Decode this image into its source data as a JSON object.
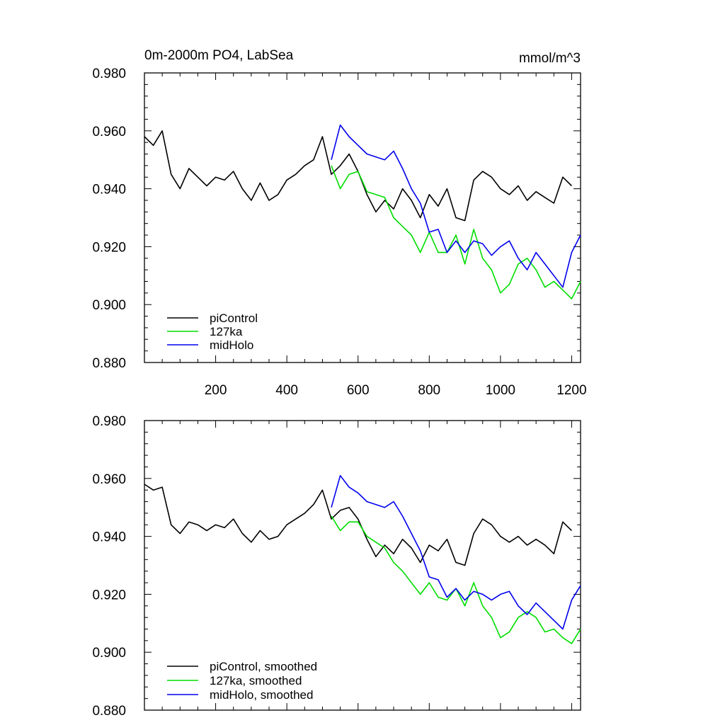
{
  "figure": {
    "title_left": "0m-2000m PO4, LabSea",
    "title_right": "mmol/m^3"
  },
  "chart_data": [
    {
      "type": "line",
      "panel": "top",
      "title": "0m-2000m PO4, LabSea",
      "units": "mmol/m^3",
      "xlim": [
        0,
        1225
      ],
      "ylim": [
        0.88,
        0.98
      ],
      "x_ticks": [
        200,
        400,
        600,
        800,
        1000,
        1200
      ],
      "x_tick_labels": [
        "200",
        "400",
        "600",
        "800",
        "1000",
        "1200"
      ],
      "y_ticks": [
        0.88,
        0.9,
        0.92,
        0.94,
        0.96,
        0.98
      ],
      "y_tick_labels": [
        "0.880",
        "0.900",
        "0.920",
        "0.940",
        "0.960",
        "0.980"
      ],
      "legend_position": "bottom-left",
      "series": [
        {
          "name": "piControl",
          "color": "#000000",
          "x": [
            0,
            25,
            50,
            75,
            100,
            125,
            150,
            175,
            200,
            225,
            250,
            275,
            300,
            325,
            350,
            375,
            400,
            425,
            450,
            475,
            500,
            525,
            550,
            575,
            600,
            625,
            650,
            675,
            700,
            725,
            750,
            775,
            800,
            825,
            850,
            875,
            900,
            925,
            950,
            975,
            1000,
            1025,
            1050,
            1075,
            1100,
            1125,
            1150,
            1175,
            1200
          ],
          "y": [
            0.958,
            0.955,
            0.96,
            0.945,
            0.94,
            0.947,
            0.944,
            0.941,
            0.944,
            0.943,
            0.946,
            0.94,
            0.936,
            0.942,
            0.936,
            0.938,
            0.943,
            0.945,
            0.948,
            0.95,
            0.958,
            0.945,
            0.948,
            0.952,
            0.946,
            0.938,
            0.932,
            0.936,
            0.933,
            0.94,
            0.936,
            0.93,
            0.938,
            0.934,
            0.94,
            0.93,
            0.929,
            0.943,
            0.946,
            0.944,
            0.94,
            0.938,
            0.941,
            0.936,
            0.939,
            0.937,
            0.935,
            0.944,
            0.941
          ]
        },
        {
          "name": "127ka",
          "color": "#00dd00",
          "x": [
            525,
            550,
            575,
            600,
            625,
            650,
            675,
            700,
            725,
            750,
            775,
            800,
            825,
            850,
            875,
            900,
            925,
            950,
            975,
            1000,
            1025,
            1050,
            1075,
            1100,
            1125,
            1150,
            1175,
            1200,
            1225
          ],
          "y": [
            0.948,
            0.94,
            0.945,
            0.946,
            0.939,
            0.938,
            0.937,
            0.93,
            0.927,
            0.924,
            0.918,
            0.925,
            0.918,
            0.918,
            0.924,
            0.914,
            0.926,
            0.916,
            0.912,
            0.904,
            0.907,
            0.914,
            0.916,
            0.912,
            0.906,
            0.908,
            0.905,
            0.902,
            0.908
          ]
        },
        {
          "name": "midHolo",
          "color": "#0000ee",
          "x": [
            525,
            550,
            575,
            600,
            625,
            650,
            675,
            700,
            725,
            750,
            775,
            800,
            825,
            850,
            875,
            900,
            925,
            950,
            975,
            1000,
            1025,
            1050,
            1075,
            1100,
            1125,
            1150,
            1175,
            1200,
            1225
          ],
          "y": [
            0.95,
            0.962,
            0.958,
            0.955,
            0.952,
            0.951,
            0.95,
            0.953,
            0.947,
            0.94,
            0.935,
            0.925,
            0.926,
            0.918,
            0.922,
            0.918,
            0.922,
            0.921,
            0.917,
            0.92,
            0.922,
            0.916,
            0.912,
            0.918,
            0.914,
            0.91,
            0.906,
            0.918,
            0.924
          ]
        }
      ]
    },
    {
      "type": "line",
      "panel": "bottom",
      "xlim": [
        0,
        1225
      ],
      "ylim": [
        0.88,
        0.98
      ],
      "y_ticks": [
        0.88,
        0.9,
        0.92,
        0.94,
        0.96,
        0.98
      ],
      "y_tick_labels": [
        "0.880",
        "0.900",
        "0.920",
        "0.940",
        "0.960",
        "0.980"
      ],
      "legend_position": "bottom-left",
      "series": [
        {
          "name": "piControl, smoothed",
          "color": "#000000",
          "x": [
            0,
            25,
            50,
            75,
            100,
            125,
            150,
            175,
            200,
            225,
            250,
            275,
            300,
            325,
            350,
            375,
            400,
            425,
            450,
            475,
            500,
            525,
            550,
            575,
            600,
            625,
            650,
            675,
            700,
            725,
            750,
            775,
            800,
            825,
            850,
            875,
            900,
            925,
            950,
            975,
            1000,
            1025,
            1050,
            1075,
            1100,
            1125,
            1150,
            1175,
            1200
          ],
          "y": [
            0.958,
            0.956,
            0.957,
            0.944,
            0.941,
            0.945,
            0.944,
            0.942,
            0.944,
            0.943,
            0.946,
            0.941,
            0.938,
            0.942,
            0.939,
            0.94,
            0.944,
            0.946,
            0.948,
            0.951,
            0.956,
            0.946,
            0.949,
            0.95,
            0.946,
            0.939,
            0.933,
            0.937,
            0.934,
            0.939,
            0.936,
            0.931,
            0.937,
            0.935,
            0.939,
            0.931,
            0.93,
            0.941,
            0.946,
            0.944,
            0.94,
            0.938,
            0.94,
            0.937,
            0.939,
            0.937,
            0.934,
            0.945,
            0.942
          ]
        },
        {
          "name": "127ka, smoothed",
          "color": "#00dd00",
          "x": [
            525,
            550,
            575,
            600,
            625,
            650,
            675,
            700,
            725,
            750,
            775,
            800,
            825,
            850,
            875,
            900,
            925,
            950,
            975,
            1000,
            1025,
            1050,
            1075,
            1100,
            1125,
            1150,
            1175,
            1200,
            1225
          ],
          "y": [
            0.947,
            0.942,
            0.945,
            0.945,
            0.94,
            0.938,
            0.936,
            0.931,
            0.928,
            0.924,
            0.92,
            0.924,
            0.919,
            0.918,
            0.922,
            0.916,
            0.924,
            0.916,
            0.912,
            0.905,
            0.907,
            0.912,
            0.914,
            0.912,
            0.907,
            0.908,
            0.905,
            0.903,
            0.908
          ]
        },
        {
          "name": "midHolo, smoothed",
          "color": "#0000ee",
          "x": [
            525,
            550,
            575,
            600,
            625,
            650,
            675,
            700,
            725,
            750,
            775,
            800,
            825,
            850,
            875,
            900,
            925,
            950,
            975,
            1000,
            1025,
            1050,
            1075,
            1100,
            1125,
            1150,
            1175,
            1200,
            1225
          ],
          "y": [
            0.95,
            0.961,
            0.957,
            0.955,
            0.952,
            0.951,
            0.95,
            0.952,
            0.947,
            0.941,
            0.935,
            0.926,
            0.925,
            0.919,
            0.922,
            0.918,
            0.921,
            0.92,
            0.918,
            0.92,
            0.921,
            0.916,
            0.913,
            0.917,
            0.914,
            0.911,
            0.908,
            0.918,
            0.923
          ]
        }
      ]
    }
  ]
}
